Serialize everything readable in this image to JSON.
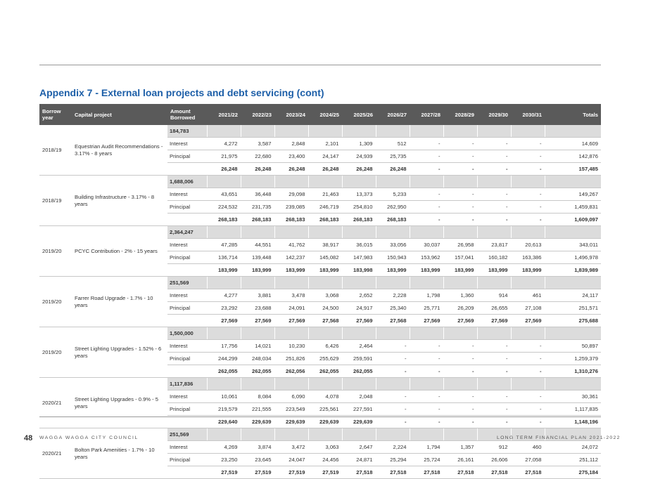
{
  "title": "Appendix 7 - External loan projects and debt servicing (cont)",
  "headers": {
    "borrow_year": "Borrow year",
    "capital_project": "Capital project",
    "amount_borrowed": "Amount Borrowed",
    "years": [
      "2021/22",
      "2022/23",
      "2023/24",
      "2024/25",
      "2025/26",
      "2026/27",
      "2027/28",
      "2028/29",
      "2029/30",
      "2030/31"
    ],
    "totals": "Totals"
  },
  "labels": {
    "interest": "Interest",
    "principal": "Principal"
  },
  "projects": [
    {
      "year": "2018/19",
      "name": "Equestrian Audit Recommendations - 3.17% - 8 years",
      "amount": "184,783",
      "interest": [
        "4,272",
        "3,587",
        "2,848",
        "2,101",
        "1,309",
        "512",
        "-",
        "-",
        "-",
        "-",
        "14,609"
      ],
      "principal": [
        "21,975",
        "22,680",
        "23,400",
        "24,147",
        "24,939",
        "25,735",
        "-",
        "-",
        "-",
        "-",
        "142,876"
      ],
      "totals": [
        "26,248",
        "26,248",
        "26,248",
        "26,248",
        "26,248",
        "26,248",
        "-",
        "-",
        "-",
        "-",
        "157,485"
      ]
    },
    {
      "year": "2018/19",
      "name": "Building Infrastructure - 3.17% - 8 years",
      "amount": "1,688,006",
      "interest": [
        "43,651",
        "36,448",
        "29,098",
        "21,463",
        "13,373",
        "5,233",
        "-",
        "-",
        "-",
        "-",
        "149,267"
      ],
      "principal": [
        "224,532",
        "231,735",
        "239,085",
        "246,719",
        "254,810",
        "262,950",
        "-",
        "-",
        "-",
        "-",
        "1,459,831"
      ],
      "totals": [
        "268,183",
        "268,183",
        "268,183",
        "268,183",
        "268,183",
        "268,183",
        "-",
        "-",
        "-",
        "-",
        "1,609,097"
      ]
    },
    {
      "year": "2019/20",
      "name": "PCYC Contribution - 2% - 15 years",
      "amount": "2,364,247",
      "interest": [
        "47,285",
        "44,551",
        "41,762",
        "38,917",
        "36,015",
        "33,056",
        "30,037",
        "26,958",
        "23,817",
        "20,613",
        "343,011"
      ],
      "principal": [
        "136,714",
        "139,448",
        "142,237",
        "145,082",
        "147,983",
        "150,943",
        "153,962",
        "157,041",
        "160,182",
        "163,386",
        "1,496,978"
      ],
      "totals": [
        "183,999",
        "183,999",
        "183,999",
        "183,999",
        "183,998",
        "183,999",
        "183,999",
        "183,999",
        "183,999",
        "183,999",
        "1,839,989"
      ]
    },
    {
      "year": "2019/20",
      "name": "Farrer Road Upgrade - 1.7% - 10 years",
      "amount": "251,569",
      "interest": [
        "4,277",
        "3,881",
        "3,478",
        "3,068",
        "2,652",
        "2,228",
        "1,798",
        "1,360",
        "914",
        "461",
        "24,117"
      ],
      "principal": [
        "23,292",
        "23,688",
        "24,091",
        "24,500",
        "24,917",
        "25,340",
        "25,771",
        "26,209",
        "26,655",
        "27,108",
        "251,571"
      ],
      "totals": [
        "27,569",
        "27,569",
        "27,569",
        "27,568",
        "27,569",
        "27,568",
        "27,569",
        "27,569",
        "27,569",
        "27,569",
        "275,688"
      ]
    },
    {
      "year": "2019/20",
      "name": "Street Lighting Upgrades - 1.52% - 6 years",
      "amount": "1,500,000",
      "interest": [
        "17,756",
        "14,021",
        "10,230",
        "6,426",
        "2,464",
        "-",
        "-",
        "-",
        "-",
        "-",
        "50,897"
      ],
      "principal": [
        "244,299",
        "248,034",
        "251,826",
        "255,629",
        "259,591",
        "-",
        "-",
        "-",
        "-",
        "-",
        "1,259,379"
      ],
      "totals": [
        "262,055",
        "262,055",
        "262,056",
        "262,055",
        "262,055",
        "-",
        "-",
        "-",
        "-",
        "-",
        "1,310,276"
      ]
    },
    {
      "year": "2020/21",
      "name": "Street Lighting Upgrades - 0.9% - 5 years",
      "amount": "1,117,836",
      "interest": [
        "10,061",
        "8,084",
        "6,090",
        "4,078",
        "2,048",
        "-",
        "-",
        "-",
        "-",
        "-",
        "30,361"
      ],
      "principal": [
        "219,579",
        "221,555",
        "223,549",
        "225,561",
        "227,591",
        "-",
        "-",
        "-",
        "-",
        "-",
        "1,117,835"
      ],
      "totals": [
        "229,640",
        "229,639",
        "229,639",
        "229,639",
        "229,639",
        "-",
        "-",
        "-",
        "-",
        "-",
        "1,148,196"
      ]
    },
    {
      "year": "2020/21",
      "name": "Bolton Park Amenities - 1.7% - 10 years",
      "amount": "251,569",
      "interest": [
        "4,269",
        "3,874",
        "3,472",
        "3,063",
        "2,647",
        "2,224",
        "1,794",
        "1,357",
        "912",
        "460",
        "24,072"
      ],
      "principal": [
        "23,250",
        "23,645",
        "24,047",
        "24,456",
        "24,871",
        "25,294",
        "25,724",
        "26,161",
        "26,606",
        "27,058",
        "251,112"
      ],
      "totals": [
        "27,519",
        "27,519",
        "27,519",
        "27,519",
        "27,518",
        "27,518",
        "27,518",
        "27,518",
        "27,518",
        "27,518",
        "275,184"
      ]
    }
  ],
  "footer": {
    "page_number": "48",
    "organisation": "WAGGA WAGGA CITY COUNCIL",
    "document": "LONG TERM FINANCIAL PLAN 2021-2022"
  }
}
